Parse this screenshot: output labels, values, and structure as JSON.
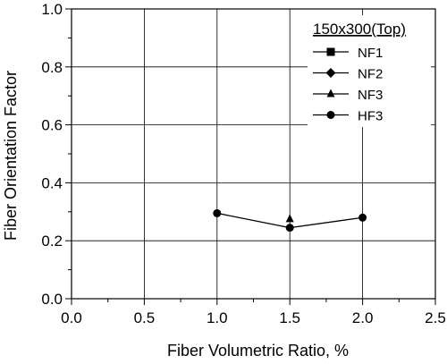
{
  "chart_data": {
    "type": "scatter",
    "title": "",
    "xlabel": "Fiber Volumetric Ratio,  %",
    "ylabel": "Fiber Orientation Factor",
    "xlim": [
      0.0,
      2.5
    ],
    "ylim": [
      0.0,
      1.0
    ],
    "xticks": [
      "0.0",
      "0.5",
      "1.0",
      "1.5",
      "2.0",
      "2.5"
    ],
    "yticks": [
      "0.0",
      "0.2",
      "0.4",
      "0.6",
      "0.8",
      "1.0"
    ],
    "grid": true,
    "legend": {
      "title": "150x300(Top)",
      "placement": "top-right"
    },
    "series": [
      {
        "name": "NF1",
        "marker": "square",
        "line": false,
        "x": [],
        "y": []
      },
      {
        "name": "NF2",
        "marker": "diamond",
        "line": false,
        "x": [],
        "y": []
      },
      {
        "name": "NF3",
        "marker": "triangle",
        "line": false,
        "x": [
          1.5
        ],
        "y": [
          0.275
        ]
      },
      {
        "name": "HF3",
        "marker": "circle",
        "line": true,
        "x": [
          1.0,
          1.5,
          2.0
        ],
        "y": [
          0.295,
          0.245,
          0.28
        ]
      }
    ],
    "color": "#000000"
  }
}
